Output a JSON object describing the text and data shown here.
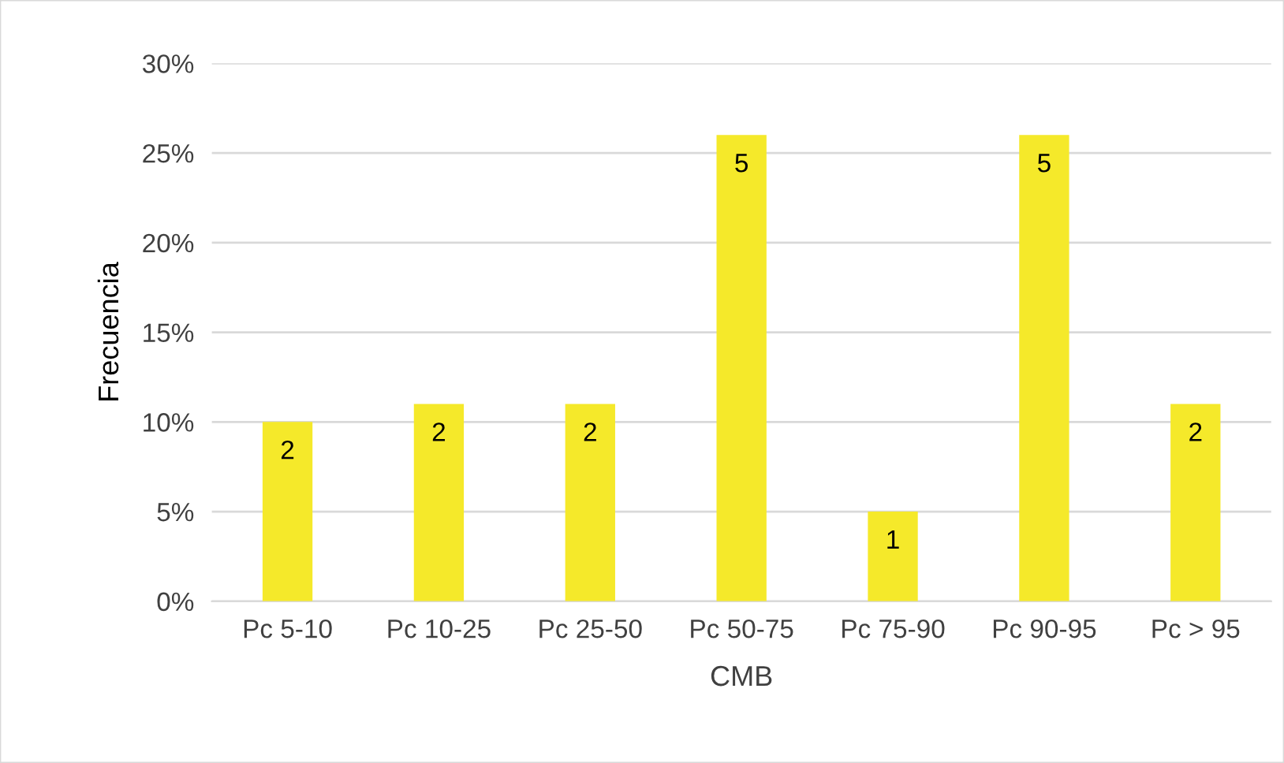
{
  "chart_data": {
    "type": "bar",
    "xlabel": "CMB",
    "ylabel": "Frecuencia",
    "categories": [
      "Pc 5-10",
      "Pc 10-25",
      "Pc 25-50",
      "Pc 50-75",
      "Pc 75-90",
      "Pc 90-95",
      "Pc > 95"
    ],
    "values": [
      10,
      11,
      11,
      26,
      5,
      26,
      11
    ],
    "annotations": [
      {
        "text": "2",
        "x": "Pc 5-10",
        "y": 10
      },
      {
        "text": "2",
        "x": "Pc 10-25",
        "y": 11
      },
      {
        "text": "2",
        "x": "Pc 25-50",
        "y": 11
      },
      {
        "text": "5",
        "x": "Pc 50-75",
        "y": 26
      },
      {
        "text": "1",
        "x": "Pc 75-90",
        "y": 5
      },
      {
        "text": "5",
        "x": "Pc 90-95",
        "y": 26
      },
      {
        "text": "2",
        "x": "Pc > 95",
        "y": 11
      }
    ],
    "color": "#f5e92a",
    "ylim": [
      0,
      30
    ],
    "yticks": [
      {
        "value": 0,
        "label": "0%"
      },
      {
        "value": 5,
        "label": "5%"
      },
      {
        "value": 10,
        "label": "10%"
      },
      {
        "value": 15,
        "label": "15%"
      },
      {
        "value": 20,
        "label": "20%"
      },
      {
        "value": 25,
        "label": "25%"
      },
      {
        "value": 30,
        "label": "30%"
      }
    ],
    "grid": "y",
    "legend": false
  }
}
